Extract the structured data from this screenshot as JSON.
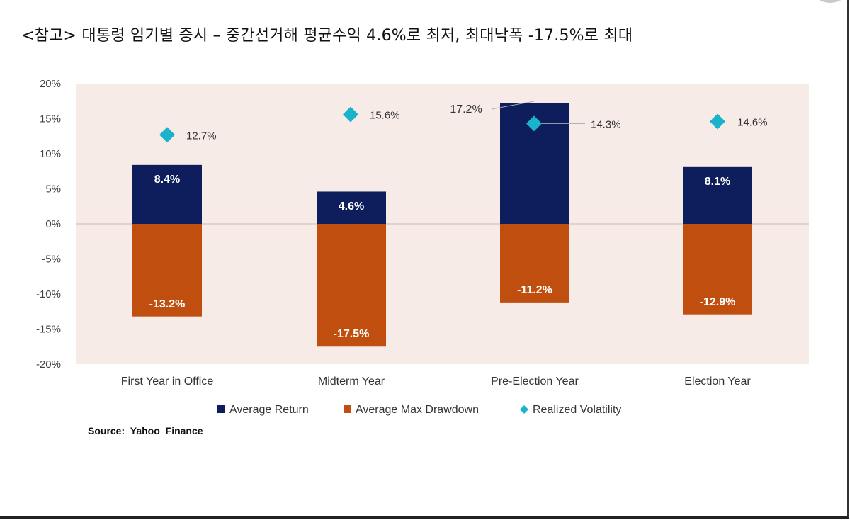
{
  "title": "<참고> 대통령 임기별 증시 – 중간선거해 평균수익 4.6%로 최저, 최대낙폭 -17.5%로 최대",
  "source": "Source: Yahoo Finance",
  "colors": {
    "average_return": "#0e1d5c",
    "average_max_drawdown": "#c04f0f",
    "realized_volatility": "#1bb3cc",
    "plot_background": "#f7ebe8"
  },
  "chart_data": {
    "type": "bar",
    "categories": [
      "First Year in Office",
      "Midterm Year",
      "Pre-Election Year",
      "Election Year"
    ],
    "series": [
      {
        "name": "Average Return",
        "type": "bar",
        "values": [
          8.4,
          4.6,
          17.2,
          8.1
        ],
        "labels": [
          "8.4%",
          "4.6%",
          "17.2%",
          "8.1%"
        ]
      },
      {
        "name": "Average Max Drawdown",
        "type": "bar",
        "values": [
          -13.2,
          -17.5,
          -11.2,
          -12.9
        ],
        "labels": [
          "-13.2%",
          "-17.5%",
          "-11.2%",
          "-12.9%"
        ]
      },
      {
        "name": "Realized Volatility",
        "type": "scatter",
        "marker": "diamond",
        "values": [
          12.7,
          15.6,
          14.3,
          14.6
        ],
        "labels": [
          "12.7%",
          "15.6%",
          "14.3%",
          "14.6%"
        ]
      }
    ],
    "ylim": [
      -20,
      20
    ],
    "yticks": [
      20,
      15,
      10,
      5,
      0,
      -5,
      -10,
      -15,
      -20
    ],
    "ytick_labels": [
      "20%",
      "15%",
      "10%",
      "5%",
      "0%",
      "-5%",
      "-10%",
      "-15%",
      "-20%"
    ],
    "legend_position": "bottom",
    "grid": false
  }
}
